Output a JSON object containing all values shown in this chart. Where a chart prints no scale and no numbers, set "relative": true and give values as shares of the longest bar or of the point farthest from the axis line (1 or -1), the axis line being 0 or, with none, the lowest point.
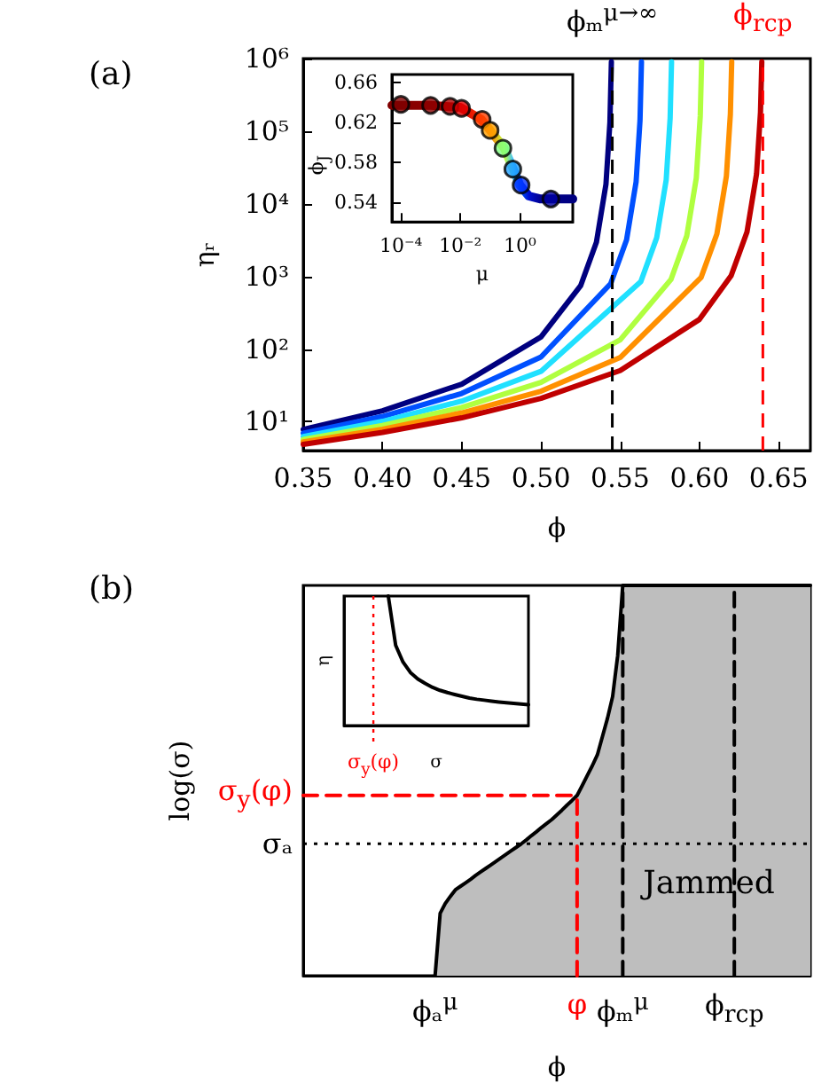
{
  "chart_data": [
    {
      "type": "line",
      "title": "(a)",
      "xlabel": "ϕ",
      "ylabel": "ηᵣ",
      "log": "y",
      "xlim": [
        0.35,
        0.67
      ],
      "xticks": [
        0.35,
        {
          "value": 0.4,
          "label": "0.40"
        },
        0.45,
        {
          "value": 0.5,
          "label": "0.50"
        },
        0.55,
        {
          "value": 0.6,
          "label": "0.60"
        },
        0.65
      ],
      "ylim": [
        4,
        1000000
      ],
      "yticks": [
        {
          "value": 10,
          "label": "10¹"
        },
        {
          "value": 100,
          "label": "10²"
        },
        {
          "value": 1000,
          "label": "10³"
        },
        {
          "value": 10000,
          "label": "10⁴"
        },
        {
          "value": 100000,
          "label": "10⁵"
        },
        {
          "value": 1000000,
          "label": "10⁶"
        }
      ],
      "ref_lines": [
        {
          "axis": "x",
          "value": 0.545,
          "label": "ϕₘ$^{μ→∞}$",
          "color": "#000000",
          "line_style": "dashed"
        },
        {
          "axis": "x",
          "value": 0.64,
          "label": "ϕ$_{rcp}$",
          "color": "#ff0000",
          "line_style": "dashed"
        }
      ],
      "series": [
        {
          "color": "#00007f",
          "x": [
            0.35,
            0.4,
            0.45,
            0.5,
            0.525,
            0.535,
            0.541,
            0.5435,
            0.54443
          ],
          "values": [
            7.81,
            14.1,
            32.9,
            147,
            743,
            2970,
            18560,
            132000,
            900000
          ]
        },
        {
          "color": "#0050ff",
          "x": [
            0.35,
            0.4,
            0.45,
            0.5,
            0.544,
            0.554,
            0.56,
            0.5625,
            0.56341
          ],
          "values": [
            6.95,
            11.8,
            24.5,
            77.6,
            795,
            3181,
            19880,
            141400,
            900000
          ]
        },
        {
          "color": "#20e0ff",
          "x": [
            0.35,
            0.4,
            0.45,
            0.5,
            0.563,
            0.573,
            0.579,
            0.5815,
            0.58239
          ],
          "values": [
            6.26,
            10.1,
            19.2,
            49.3,
            850,
            3399,
            21240,
            151000,
            900000
          ]
        },
        {
          "color": "#b0ff40",
          "x": [
            0.35,
            0.4,
            0.45,
            0.5,
            0.55,
            0.582,
            0.592,
            0.598,
            0.6005,
            0.60137
          ],
          "values": [
            5.71,
            8.88,
            15.7,
            34.8,
            134,
            906,
            3624,
            22650,
            161000,
            900000
          ]
        },
        {
          "color": "#ff9000",
          "x": [
            0.35,
            0.4,
            0.45,
            0.5,
            0.55,
            0.601,
            0.611,
            0.617,
            0.6195,
            0.62035
          ],
          "values": [
            5.25,
            7.89,
            13.2,
            26.3,
            76.5,
            964,
            3856,
            24100,
            171400,
            900000
          ]
        },
        {
          "color": "#c00000",
          "x": [
            0.35,
            0.4,
            0.45,
            0.5,
            0.55,
            0.6,
            0.62,
            0.63,
            0.636,
            0.6385,
            0.63933
          ],
          "values": [
            4.87,
            7.11,
            11.3,
            20.9,
            50.6,
            256,
            1024,
            4096,
            25600,
            182000,
            900000
          ]
        }
      ]
    },
    {
      "type": "scatter",
      "xlabel": "μ",
      "ylabel": "ϕ$_{J}$",
      "log": "x",
      "xlim": [
        5e-05,
        60
      ],
      "xticks": [
        {
          "value": 0.0001,
          "label": "10⁻⁴"
        },
        {
          "value": 0.01,
          "label": "10⁻²"
        },
        {
          "value": 1,
          "label": "10⁰"
        }
      ],
      "ylim": [
        0.52,
        0.668
      ],
      "yticks": [
        0.54,
        0.58,
        0.62,
        0.66
      ],
      "series": [
        {
          "type": "line",
          "marker": "none",
          "x": [
            5e-05,
            0.001,
            0.01,
            0.05,
            0.1,
            0.3,
            0.6,
            1,
            2,
            5,
            60
          ],
          "values": [
            0.637,
            0.637,
            0.635,
            0.623,
            0.612,
            0.594,
            0.573,
            0.557,
            0.546,
            0.543,
            0.543
          ],
          "colors": [
            "#800000",
            "#900000",
            "#d00000",
            "#ff3000",
            "#ff8000",
            "#c0ff40",
            "#40c0ff",
            "#0060ff",
            "#0010d0",
            "#000090",
            "#000080"
          ]
        },
        {
          "marker": "circle",
          "x": [
            0.0001,
            0.001,
            0.0045,
            0.011,
            0.054,
            0.1,
            0.27,
            0.58,
            1.1,
            11
          ],
          "values": [
            0.638,
            0.637,
            0.636,
            0.634,
            0.623,
            0.612,
            0.594,
            0.573,
            0.557,
            0.543
          ],
          "colors": [
            "#800000",
            "#8c0000",
            "#b00000",
            "#e00000",
            "#ff4000",
            "#ffa000",
            "#80ff80",
            "#20a0ff",
            "#0030ff",
            "#0000a0"
          ]
        }
      ]
    },
    {
      "type": "area",
      "title": "(b)",
      "xlabel": "ϕ",
      "ylabel": "log(σ)",
      "relative": true,
      "categories": [
        null,
        null,
        null,
        null,
        null,
        null,
        null,
        null,
        null,
        null,
        null,
        null,
        null,
        null,
        null,
        null,
        null,
        null,
        null,
        null,
        null,
        null,
        null,
        null,
        null,
        null,
        "ϕₐ$^{μ}$",
        null,
        null,
        null,
        null,
        null,
        null,
        null,
        null,
        null,
        null,
        null,
        null,
        null,
        null,
        null,
        null,
        null,
        null,
        null,
        null,
        null,
        null,
        null,
        null,
        null,
        null,
        null,
        "φ",
        null,
        null,
        null,
        null,
        null,
        null,
        null,
        null,
        "ϕₘ$^{μ}$",
        null,
        null,
        null,
        null,
        null,
        null,
        null,
        null,
        null,
        null,
        null,
        null,
        null,
        null,
        null,
        null,
        null,
        null,
        null,
        null,
        null,
        "ϕ$_{rcp}$",
        null,
        null,
        null,
        null,
        null,
        null,
        null,
        null,
        null,
        null,
        null,
        null,
        null,
        null,
        null
      ],
      "annotations": [
        "Jammed"
      ],
      "ref_lines": [
        {
          "axis": "y",
          "value": 0.338,
          "label": "σₐ",
          "color": "#000000",
          "line_style": "dotted"
        }
      ],
      "series": [
        {
          "color": "#bebebe",
          "values": [
            null,
            null,
            null,
            null,
            null,
            null,
            null,
            null,
            null,
            null,
            null,
            null,
            null,
            null,
            null,
            null,
            null,
            null,
            null,
            null,
            null,
            null,
            null,
            null,
            null,
            null,
            0,
            0.16,
            0.185,
            0.203,
            0.22,
            0.229,
            0.238,
            0.247,
            0.257,
            0.266,
            0.275,
            0.284,
            0.293,
            0.302,
            0.311,
            0.32,
            0.329,
            0.338,
            0.348,
            0.359,
            0.369,
            0.38,
            0.39,
            0.4,
            0.412,
            0.424,
            0.437,
            0.449,
            0.462,
            0.487,
            0.513,
            0.538,
            0.566,
            0.613,
            0.66,
            0.715,
            0.82,
            1,
            1,
            1,
            1,
            1,
            1,
            1,
            1,
            1,
            1,
            1,
            1,
            1,
            1,
            1,
            1,
            1,
            1,
            1,
            1,
            1,
            1,
            1,
            1,
            1,
            1,
            1,
            1,
            1,
            1,
            1,
            1,
            1,
            1,
            1,
            1,
            1,
            1
          ]
        },
        {
          "type": "line",
          "name": "σ$_{y}$(φ)",
          "color": "#ff0000",
          "line_style": "dashed",
          "values": [
            0.462,
            0.462,
            0.462,
            0.462,
            0.462,
            0.462,
            0.462,
            0.462,
            0.462,
            0.462,
            0.462,
            0.462,
            0.462,
            0.462,
            0.462,
            0.462,
            0.462,
            0.462,
            0.462,
            0.462,
            0.462,
            0.462,
            0.462,
            0.462,
            0.462,
            0.462,
            0.462,
            0.462,
            0.462,
            0.462,
            0.462,
            0.462,
            0.462,
            0.462,
            0.462,
            0.462,
            0.462,
            0.462,
            0.462,
            0.462,
            0.462,
            0.462,
            0.462,
            0.462,
            0.462,
            0.462,
            0.462,
            0.462,
            0.462,
            0.462,
            0.462,
            0.462,
            0.462,
            0.462,
            0.462,
            null,
            null,
            null,
            null,
            null,
            null,
            null,
            null,
            null,
            null,
            null,
            null,
            null,
            null,
            null,
            null,
            null,
            null,
            null,
            null,
            null,
            null,
            null,
            null,
            null,
            null,
            null,
            null,
            null,
            null,
            null,
            null,
            null,
            null,
            null,
            null,
            null,
            null,
            null,
            null,
            null,
            null,
            null,
            null,
            null,
            null
          ]
        },
        {
          "type": "line",
          "color": "#ff0000",
          "line_style": "dashed",
          "x": [
            "φ",
            "φ"
          ],
          "values": [
            0,
            0.462
          ]
        },
        {
          "type": "line",
          "color": "#000000",
          "line_style": "dashed",
          "x": [
            "ϕₘ$^{μ}$",
            "ϕₘ$^{μ}$"
          ],
          "values": [
            0,
            1
          ]
        },
        {
          "type": "line",
          "color": "#000000",
          "line_style": "dashed",
          "x": [
            "ϕ$_{rcp}$",
            "ϕ$_{rcp}$"
          ],
          "values": [
            0,
            1
          ]
        }
      ]
    },
    {
      "type": "line",
      "xlabel": "σ",
      "ylabel": "η",
      "relative": true,
      "color": "#000000",
      "annotations": [
        "σ$_{y}$(φ)"
      ],
      "categories": [
        null,
        null,
        null,
        null,
        null,
        null,
        null,
        null,
        null,
        null,
        null,
        null,
        null,
        null,
        null,
        null,
        null,
        null,
        null,
        null,
        null,
        null,
        null,
        null,
        null,
        null
      ],
      "values": [
        null,
        null,
        null,
        null,
        null,
        null,
        1,
        0.62,
        0.49,
        0.41,
        0.36,
        0.325,
        0.295,
        0.272,
        0.255,
        0.24,
        0.226,
        0.212,
        0.203,
        0.196,
        0.189,
        0.182,
        0.176,
        0.171,
        0.166,
        0.161
      ]
    }
  ]
}
